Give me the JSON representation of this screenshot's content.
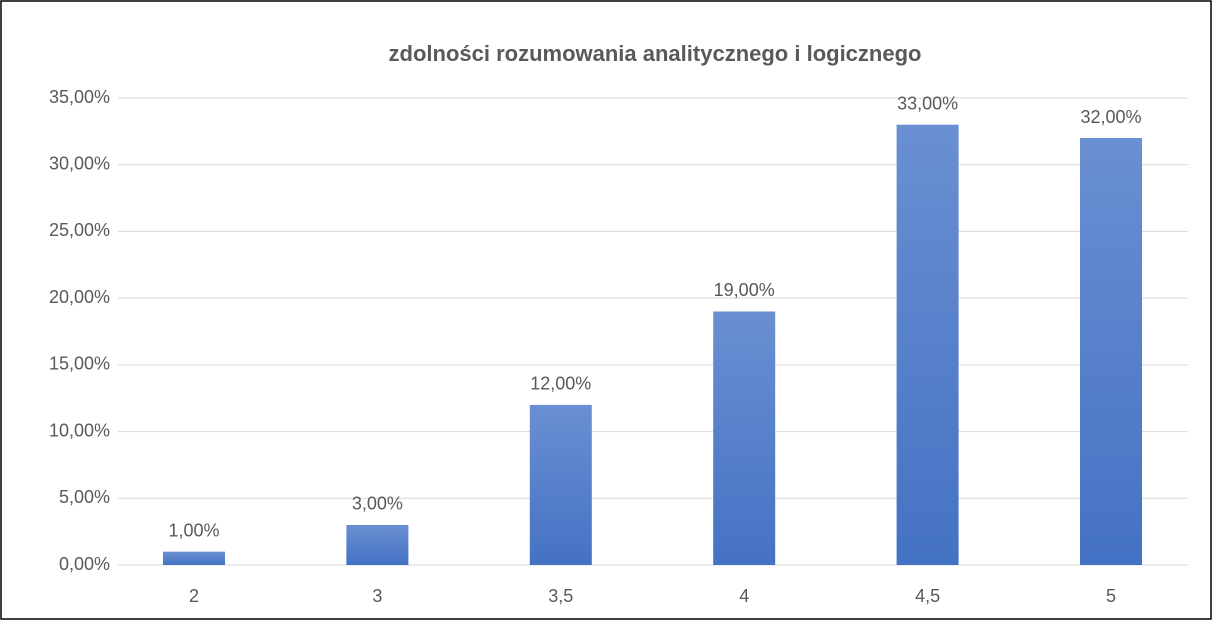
{
  "chart_data": {
    "type": "bar",
    "title": "zdolności rozumowania analitycznego i logicznego",
    "categories": [
      "2",
      "3",
      "3,5",
      "4",
      "4,5",
      "5"
    ],
    "values": [
      1,
      3,
      12,
      19,
      33,
      32
    ],
    "value_labels": [
      "1,00%",
      "3,00%",
      "12,00%",
      "19,00%",
      "33,00%",
      "32,00%"
    ],
    "color": "#4472c4",
    "ylim": [
      0,
      35
    ],
    "yticks": [
      {
        "value": 0,
        "label": "0,00%"
      },
      {
        "value": 5,
        "label": "5,00%"
      },
      {
        "value": 10,
        "label": "10,00%"
      },
      {
        "value": 15,
        "label": "15,00%"
      },
      {
        "value": 20,
        "label": "20,00%"
      },
      {
        "value": 25,
        "label": "25,00%"
      },
      {
        "value": 30,
        "label": "30,00%"
      },
      {
        "value": 35,
        "label": "35,00%"
      }
    ],
    "grid": true
  }
}
